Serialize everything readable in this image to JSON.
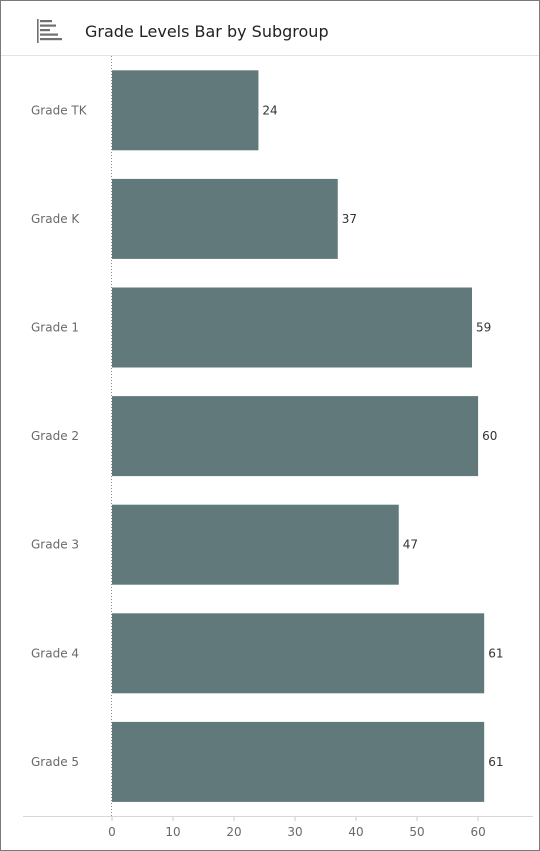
{
  "header": {
    "icon": "horizontal-bar-chart-icon",
    "title": "Grade Levels Bar by Subgroup"
  },
  "chart_data": {
    "type": "bar",
    "orientation": "horizontal",
    "title": "Grade Levels Bar by Subgroup",
    "categories": [
      "Grade TK",
      "Grade K",
      "Grade 1",
      "Grade 2",
      "Grade 3",
      "Grade 4",
      "Grade 5"
    ],
    "values": [
      24,
      37,
      59,
      60,
      47,
      61,
      61
    ],
    "data_labels": [
      "24",
      "37",
      "59",
      "60",
      "47",
      "61",
      "61"
    ],
    "x_ticks": [
      0,
      10,
      20,
      30,
      40,
      50,
      60
    ],
    "x_tick_labels": [
      "0",
      "10",
      "20",
      "30",
      "40",
      "50",
      "60"
    ],
    "xlim": [
      0,
      69
    ],
    "xlabel": "",
    "ylabel": "",
    "grid": false,
    "bar_color": "#61797a"
  }
}
